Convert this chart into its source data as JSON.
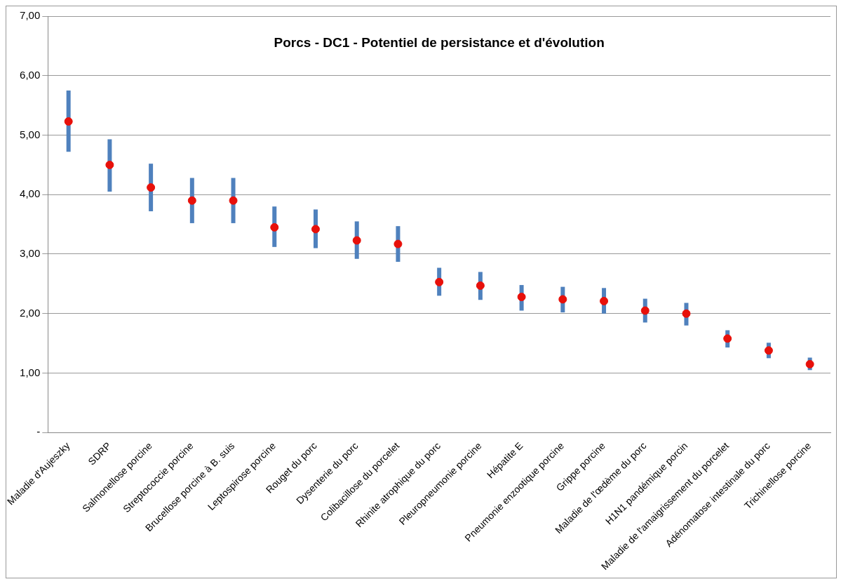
{
  "chart_data": {
    "type": "scatter",
    "title": "Porcs - DC1 - Potentiel de persistance et d'évolution",
    "categories": [
      "Maladie d'Aujeszky",
      "SDRP",
      "Salmonellose porcine",
      "Streptococcie porcine",
      "Brucellose porcine à B. suis",
      "Leptospirose porcine",
      "Rouget du porc",
      "Dysenterie du porc",
      "Colibacillose du porcelet",
      "Rhinite atrophique du porc",
      "Pleuropneumonie porcine",
      "Hépatite E",
      "Pneumonie enzootique porcine",
      "Grippe porcine",
      "Maladie de l'œdème du porc",
      "H1N1 pandémique porcin",
      "Maladie de l'amaigrissement du porcelet",
      "Adénomatose intestinale du porc",
      "Trichinellose porcine"
    ],
    "series": [
      {
        "color": "#e8100a",
        "values": [
          5.23,
          4.5,
          4.12,
          3.9,
          3.9,
          3.45,
          3.42,
          3.23,
          3.17,
          2.53,
          2.47,
          2.28,
          2.24,
          2.21,
          2.05,
          2.0,
          1.58,
          1.38,
          1.15
        ],
        "errors": [
          [
            4.72,
            5.75
          ],
          [
            4.05,
            4.93
          ],
          [
            3.72,
            4.52
          ],
          [
            3.52,
            4.28
          ],
          [
            3.52,
            4.28
          ],
          [
            3.12,
            3.8
          ],
          [
            3.1,
            3.75
          ],
          [
            2.92,
            3.55
          ],
          [
            2.87,
            3.47
          ],
          [
            2.3,
            2.77
          ],
          [
            2.23,
            2.7
          ],
          [
            2.05,
            2.48
          ],
          [
            2.02,
            2.45
          ],
          [
            2.0,
            2.43
          ],
          [
            1.85,
            2.25
          ],
          [
            1.8,
            2.18
          ],
          [
            1.43,
            1.72
          ],
          [
            1.25,
            1.51
          ],
          [
            1.05,
            1.26
          ]
        ]
      }
    ],
    "ylim": [
      0,
      7
    ],
    "yticks": [
      {
        "value": 0,
        "label": "-"
      },
      {
        "value": 1,
        "label": "1,00"
      },
      {
        "value": 2,
        "label": "2,00"
      },
      {
        "value": 3,
        "label": "3,00"
      },
      {
        "value": 4,
        "label": "4,00"
      },
      {
        "value": 5,
        "label": "5,00"
      },
      {
        "value": 6,
        "label": "6,00"
      },
      {
        "value": 7,
        "label": "7,00"
      }
    ],
    "grid": "y",
    "legend": false,
    "marker": "circle"
  }
}
